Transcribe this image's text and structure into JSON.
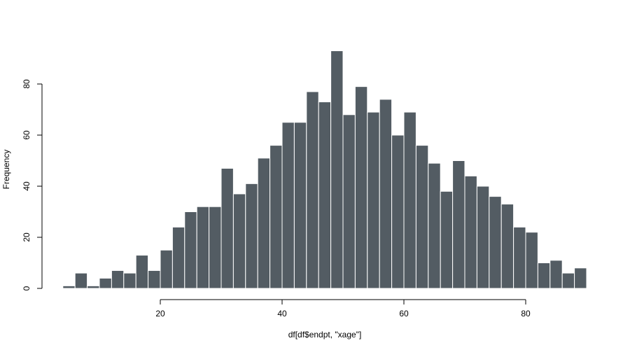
{
  "chart_data": {
    "type": "bar",
    "title": "",
    "xlabel": "df[df$endpt, \"xage\"]",
    "ylabel": "Frequency",
    "bin_width": 2,
    "bins_start": [
      4,
      6,
      8,
      10,
      12,
      14,
      16,
      18,
      20,
      22,
      24,
      26,
      28,
      30,
      32,
      34,
      36,
      38,
      40,
      42,
      44,
      46,
      48,
      50,
      52,
      54,
      56,
      58,
      60,
      62,
      64,
      66,
      68,
      70,
      72,
      74,
      76,
      78,
      80,
      82,
      84,
      86,
      88
    ],
    "values": [
      1,
      6,
      1,
      4,
      7,
      6,
      13,
      7,
      15,
      24,
      30,
      32,
      32,
      47,
      37,
      41,
      51,
      56,
      65,
      65,
      77,
      73,
      93,
      68,
      79,
      69,
      74,
      60,
      69,
      56,
      49,
      38,
      50,
      44,
      40,
      36,
      33,
      24,
      22,
      10,
      11,
      6,
      8
    ],
    "xlim": [
      4,
      90
    ],
    "ylim": [
      0,
      93
    ],
    "x_ticks": [
      20,
      40,
      60,
      80
    ],
    "y_ticks": [
      0,
      20,
      40,
      60,
      80
    ],
    "bar_color": "#535c63",
    "bar_edge_color": "#ffffff",
    "grid": false,
    "legend": "none"
  }
}
